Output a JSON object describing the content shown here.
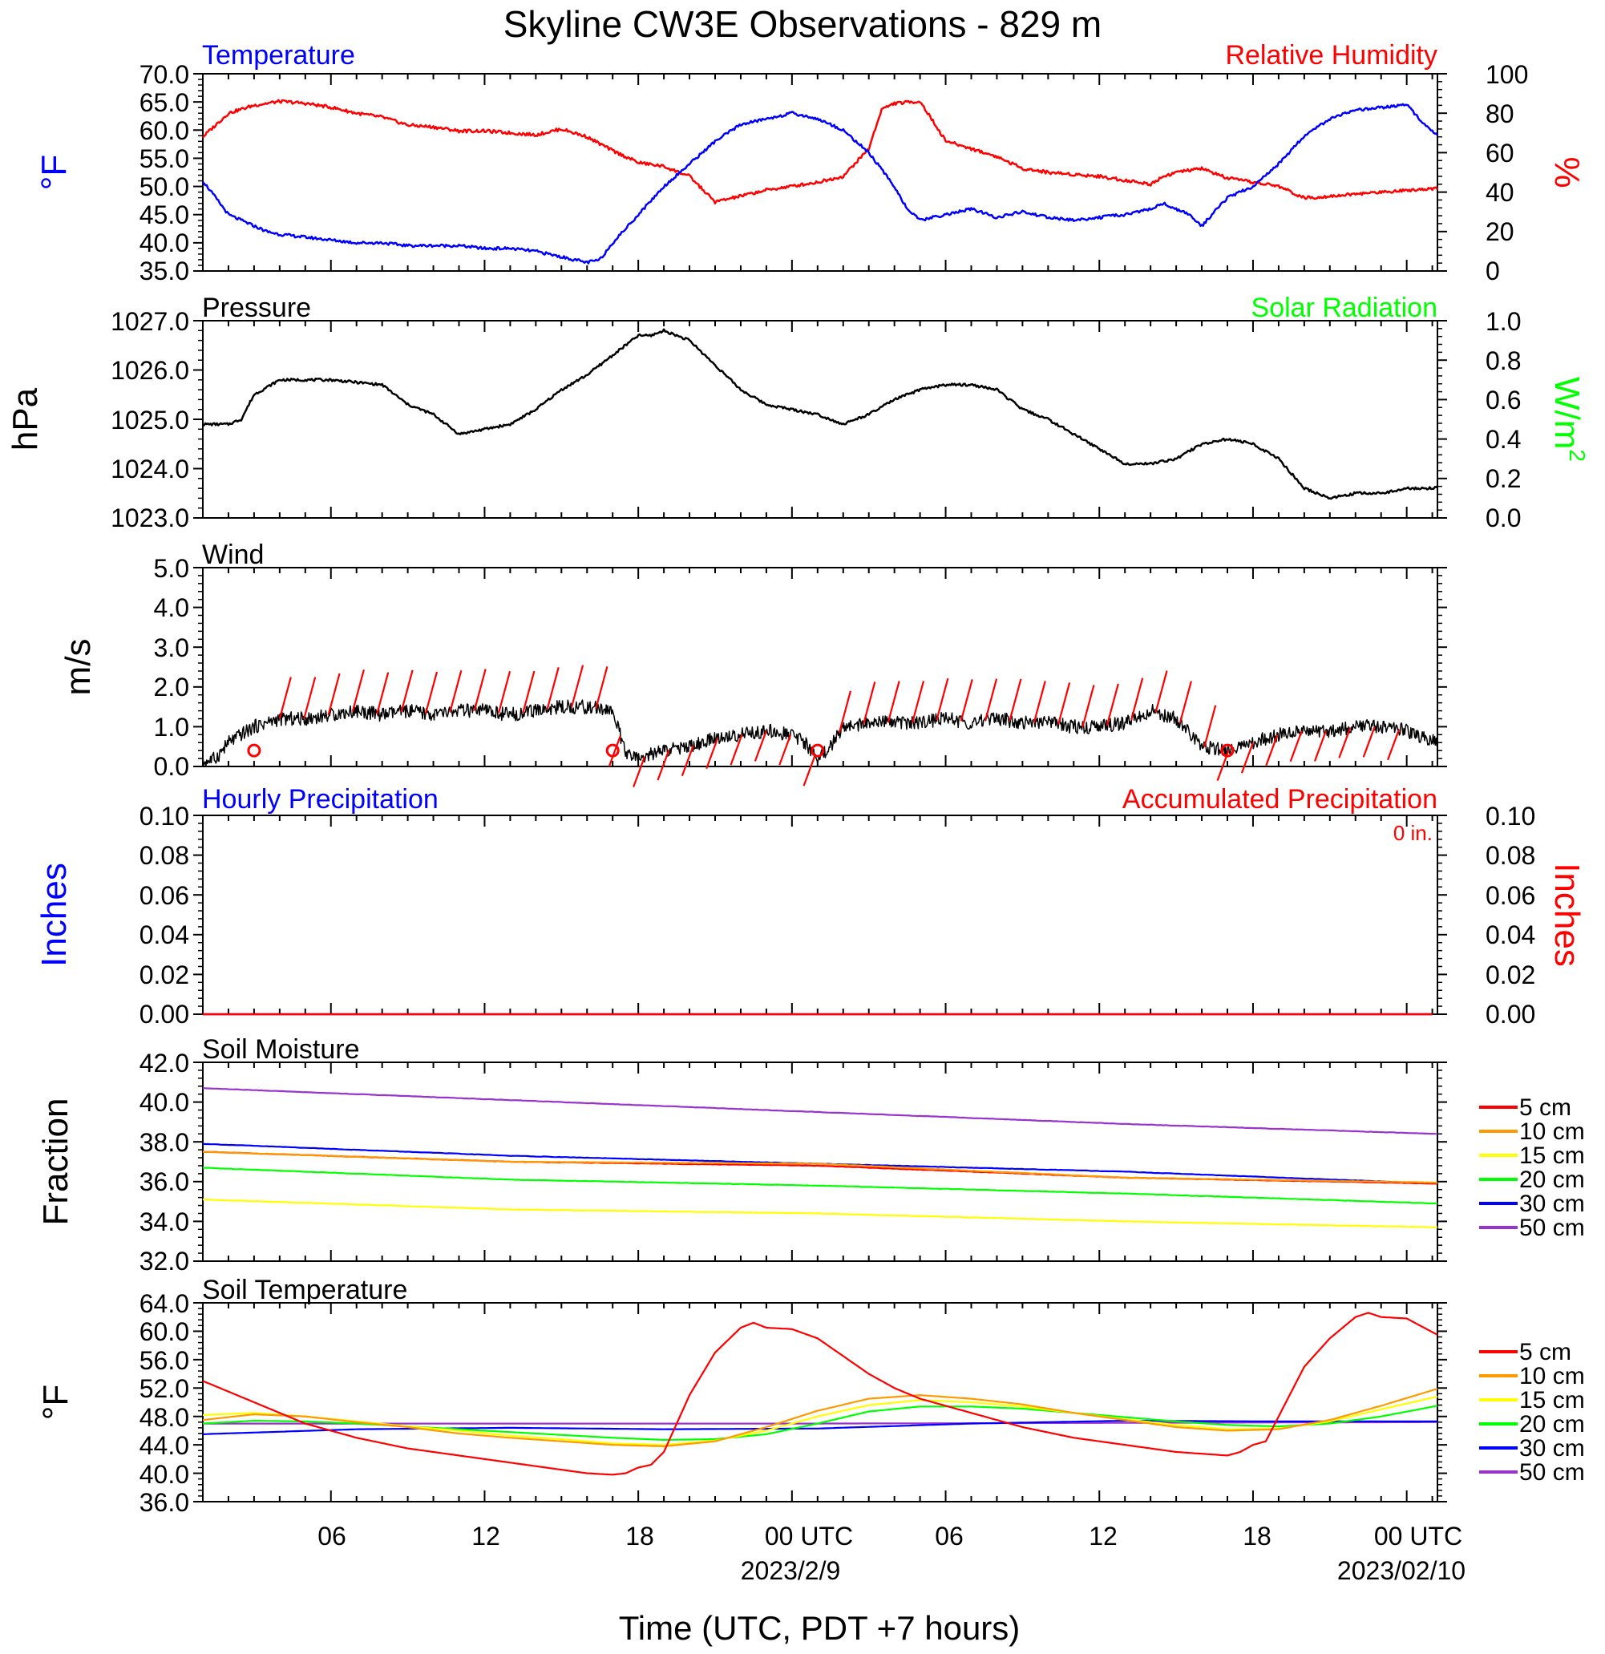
{
  "page": {
    "title": "Skyline CW3E Observations - 829 m",
    "xlabel": "Time (UTC, PDT +7 hours)"
  },
  "time_axis": {
    "tick_labels": [
      "06",
      "12",
      "18",
      "00 UTC",
      "06",
      "12",
      "18",
      "00 UTC"
    ],
    "date_labels": [
      "2023/2/9",
      "2023/02/10"
    ]
  },
  "colors": {
    "temperature": "#0000ff",
    "relative_humidity": "#ff0000",
    "solar_radiation": "#00ff00",
    "black": "#000000",
    "accum_precip": "#ff0000",
    "hourly_precip": "#0000ff",
    "depth_5cm": "#ff0000",
    "depth_10cm": "#ff9900",
    "depth_15cm": "#ffff00",
    "depth_20cm": "#00ff00",
    "depth_30cm": "#0000ff",
    "depth_50cm": "#9933cc"
  },
  "panels": {
    "temp_rh": {
      "left_title": "Temperature",
      "right_title": "Relative Humidity",
      "left_unit": "°F",
      "right_unit": "%",
      "left_ticks": [
        "70.0",
        "65.0",
        "60.0",
        "55.0",
        "50.0",
        "45.0",
        "40.0",
        "35.0"
      ],
      "right_ticks": [
        "100",
        "80",
        "60",
        "40",
        "20",
        "0"
      ]
    },
    "pressure": {
      "left_title": "Pressure",
      "right_title": "Solar Radiation",
      "left_unit": "hPa",
      "right_unit": "W/m",
      "right_unit_sup": "2",
      "left_ticks": [
        "1027.0",
        "1026.0",
        "1025.0",
        "1024.0",
        "1023.0"
      ],
      "right_ticks": [
        "1.0",
        "0.8",
        "0.6",
        "0.4",
        "0.2",
        "0.0"
      ]
    },
    "wind": {
      "left_title": "Wind",
      "left_unit": "m/s",
      "left_ticks": [
        "5.0",
        "4.0",
        "3.0",
        "2.0",
        "1.0",
        "0.0"
      ]
    },
    "precip": {
      "left_title": "Hourly Precipitation",
      "right_title": "Accumulated Precipitation",
      "total_label": "0 in.",
      "left_unit": "Inches",
      "right_unit": "Inches",
      "left_ticks": [
        "0.10",
        "0.08",
        "0.06",
        "0.04",
        "0.02",
        "0.00"
      ],
      "right_ticks": [
        "0.10",
        "0.08",
        "0.06",
        "0.04",
        "0.02",
        "0.00"
      ]
    },
    "soil_moisture": {
      "left_title": "Soil Moisture",
      "left_unit": "Fraction",
      "left_ticks": [
        "42.0",
        "40.0",
        "38.0",
        "36.0",
        "34.0",
        "32.0"
      ],
      "legend": [
        "5 cm",
        "10 cm",
        "15 cm",
        "20 cm",
        "30 cm",
        "50 cm"
      ]
    },
    "soil_temp": {
      "left_title": "Soil Temperature",
      "left_unit": "°F",
      "left_ticks": [
        "64.0",
        "60.0",
        "56.0",
        "52.0",
        "48.0",
        "44.0",
        "40.0",
        "36.0"
      ],
      "legend": [
        "5 cm",
        "10 cm",
        "15 cm",
        "20 cm",
        "30 cm",
        "50 cm"
      ]
    }
  },
  "chart_data": [
    {
      "type": "line",
      "title": "Temperature",
      "ylabel": "°F",
      "ylim": [
        35,
        70
      ],
      "x_units": "hours from start of record (UTC); 06 UTC 2023-02-08 at x=5",
      "xlim": [
        0,
        48.2
      ],
      "series": [
        {
          "name": "Temperature",
          "x": [
            0,
            0.5,
            1,
            2,
            2.5,
            3,
            4,
            5,
            6,
            7,
            8,
            9,
            10,
            11,
            12,
            13,
            14,
            15,
            15.5,
            16,
            17,
            18,
            19,
            20,
            21,
            22,
            23,
            24,
            25,
            26,
            27,
            27.5,
            28,
            29,
            30,
            31,
            32,
            33,
            34,
            35,
            36,
            37,
            37.5,
            38,
            38.5,
            39,
            40,
            41,
            42,
            43,
            44,
            45,
            46,
            47,
            47.5,
            48.2
          ],
          "values": [
            51,
            48,
            45,
            43,
            42,
            41.5,
            41,
            40.5,
            40,
            40,
            39.5,
            39.5,
            39.5,
            39,
            39,
            38.5,
            37.5,
            36.5,
            37,
            40,
            45,
            50,
            54,
            58,
            61,
            62,
            63,
            62,
            60,
            56,
            50,
            46,
            44,
            45,
            46,
            44.5,
            45.5,
            44.5,
            44,
            44.5,
            45,
            46,
            47,
            46,
            45,
            43,
            48,
            50,
            54,
            59,
            62,
            63.5,
            64,
            64.5,
            62,
            59
          ]
        },
        {
          "name": "Relative Humidity",
          "axis": "right",
          "ylim": [
            0,
            100
          ],
          "x": [
            0,
            0.5,
            1,
            2,
            3,
            4,
            5,
            6,
            7,
            8,
            9,
            10,
            11,
            12,
            13,
            14,
            15,
            16,
            17,
            18,
            19,
            20,
            21,
            22,
            23,
            24,
            25,
            26,
            26.5,
            27,
            28,
            29,
            30,
            31,
            32,
            33,
            34,
            35,
            36,
            37,
            37.5,
            38,
            39,
            40,
            41,
            42,
            43,
            44,
            45,
            46,
            47,
            48.2
          ],
          "values": [
            68,
            74,
            80,
            84,
            86,
            85,
            83,
            80,
            78,
            74,
            73,
            71,
            71,
            70,
            69,
            72,
            68,
            61,
            55,
            53,
            48,
            35,
            38,
            41,
            43,
            45,
            48,
            62,
            82,
            85,
            86,
            66,
            62,
            58,
            52,
            50,
            49,
            48,
            46,
            44,
            48,
            50,
            52,
            47,
            45,
            43,
            37,
            38,
            39,
            40,
            41,
            42
          ]
        }
      ]
    },
    {
      "type": "line",
      "title": "Pressure",
      "ylabel": "hPa",
      "ylim": [
        1023.0,
        1027.0
      ],
      "xlim": [
        0,
        48.2
      ],
      "series": [
        {
          "name": "Pressure",
          "x": [
            0,
            1,
            1.5,
            2,
            3,
            4,
            5,
            6,
            7,
            8,
            9,
            10,
            11,
            12,
            13,
            14,
            15,
            16,
            17,
            17.5,
            18,
            19,
            20,
            21,
            22,
            23,
            24,
            25,
            26,
            27,
            28,
            29,
            30,
            31,
            32,
            33,
            34,
            35,
            36,
            37,
            38,
            39,
            40,
            41,
            42,
            43,
            44,
            45,
            46,
            47,
            48,
            48.2
          ],
          "values": [
            1024.9,
            1024.9,
            1025.0,
            1025.5,
            1025.8,
            1025.8,
            1025.8,
            1025.75,
            1025.7,
            1025.3,
            1025.1,
            1024.7,
            1024.8,
            1024.9,
            1025.2,
            1025.6,
            1025.9,
            1026.3,
            1026.7,
            1026.7,
            1026.8,
            1026.6,
            1026.1,
            1025.6,
            1025.3,
            1025.2,
            1025.1,
            1024.9,
            1025.1,
            1025.4,
            1025.6,
            1025.7,
            1025.7,
            1025.6,
            1025.2,
            1025.0,
            1024.7,
            1024.4,
            1024.1,
            1024.1,
            1024.2,
            1024.5,
            1024.6,
            1024.5,
            1024.2,
            1023.6,
            1023.4,
            1023.5,
            1023.5,
            1023.6,
            1023.6,
            1023.65
          ]
        }
      ]
    },
    {
      "type": "line",
      "title": "Wind",
      "ylabel": "m/s",
      "ylim": [
        0,
        5
      ],
      "xlim": [
        0,
        48.2
      ],
      "series": [
        {
          "name": "Wind",
          "x": [
            0,
            0.5,
            1,
            1.5,
            2,
            2.5,
            3,
            4,
            5,
            6,
            7,
            8,
            9,
            10,
            11,
            12,
            13,
            14,
            15,
            16,
            16.2,
            16.5,
            17,
            18,
            19,
            20,
            21,
            22,
            23,
            23.5,
            24,
            24.5,
            25,
            26,
            27,
            28,
            29,
            30,
            31,
            32,
            33,
            34,
            35,
            36,
            37,
            38,
            39,
            40,
            41,
            42,
            43,
            44,
            45,
            46,
            47,
            48.2
          ],
          "values": [
            0.1,
            0.2,
            0.6,
            0.8,
            1.0,
            1.1,
            1.2,
            1.2,
            1.3,
            1.4,
            1.3,
            1.4,
            1.3,
            1.4,
            1.4,
            1.3,
            1.4,
            1.5,
            1.5,
            1.4,
            1.0,
            0.3,
            0.2,
            0.4,
            0.5,
            0.7,
            0.8,
            0.9,
            0.8,
            0.6,
            0.2,
            0.5,
            1.0,
            1.1,
            1.1,
            1.1,
            1.2,
            1.1,
            1.2,
            1.1,
            1.1,
            1.0,
            1.0,
            1.1,
            1.4,
            1.2,
            0.5,
            0.4,
            0.6,
            0.8,
            0.9,
            0.9,
            1.0,
            1.0,
            0.9,
            0.6
          ]
        }
      ],
      "calm_markers_x": [
        2,
        16,
        24,
        40
      ]
    },
    {
      "type": "line",
      "title": "Hourly Precipitation",
      "ylabel": "Inches",
      "ylim": [
        0,
        0.1
      ],
      "xlim": [
        0,
        48.2
      ],
      "series": [
        {
          "name": "Hourly Precipitation",
          "x": [
            0,
            48.2
          ],
          "values": [
            0,
            0
          ]
        },
        {
          "name": "Accumulated Precipitation",
          "axis": "right",
          "x": [
            0,
            48.2
          ],
          "values": [
            0,
            0
          ]
        }
      ]
    },
    {
      "type": "line",
      "title": "Soil Moisture",
      "ylabel": "Fraction",
      "ylim": [
        32,
        42
      ],
      "xlim": [
        0,
        48.2
      ],
      "series": [
        {
          "name": "5 cm",
          "x": [
            0,
            12,
            24,
            36,
            48.2
          ],
          "values": [
            37.5,
            37.0,
            36.8,
            36.2,
            35.9
          ]
        },
        {
          "name": "10 cm",
          "x": [
            0,
            12,
            24,
            36,
            48.2
          ],
          "values": [
            37.5,
            37.0,
            36.9,
            36.2,
            35.95
          ]
        },
        {
          "name": "15 cm",
          "x": [
            0,
            12,
            24,
            36,
            48.2
          ],
          "values": [
            35.1,
            34.6,
            34.4,
            34.0,
            33.7
          ]
        },
        {
          "name": "20 cm",
          "x": [
            0,
            12,
            24,
            36,
            48.2
          ],
          "values": [
            36.7,
            36.1,
            35.8,
            35.4,
            34.9
          ]
        },
        {
          "name": "30 cm",
          "x": [
            0,
            12,
            24,
            36,
            48.2
          ],
          "values": [
            37.9,
            37.3,
            36.9,
            36.5,
            35.9
          ]
        },
        {
          "name": "50 cm",
          "x": [
            0,
            12,
            24,
            36,
            48.2
          ],
          "values": [
            40.7,
            40.1,
            39.5,
            38.9,
            38.4
          ]
        }
      ]
    },
    {
      "type": "line",
      "title": "Soil Temperature",
      "ylabel": "°F",
      "ylim": [
        36,
        64
      ],
      "xlim": [
        0,
        48.2
      ],
      "series": [
        {
          "name": "5 cm",
          "x": [
            0,
            2,
            4,
            6,
            8,
            10,
            12,
            14,
            15,
            16,
            16.5,
            17,
            17.5,
            18,
            19,
            20,
            21,
            21.5,
            22,
            23,
            24,
            25,
            26,
            27,
            28,
            30,
            32,
            34,
            36,
            38,
            40,
            40.5,
            41,
            41.5,
            42,
            43,
            44,
            45,
            45.5,
            46,
            47,
            48.2
          ],
          "values": [
            53,
            50,
            47,
            45,
            43.5,
            42.5,
            41.5,
            40.5,
            40,
            39.8,
            40.0,
            40.8,
            41.2,
            43,
            51,
            57,
            60.5,
            61.2,
            60.5,
            60.3,
            59,
            56.5,
            54,
            52,
            50.5,
            48.5,
            46.5,
            45,
            44,
            43,
            42.5,
            43,
            44,
            44.5,
            48,
            55,
            59,
            62,
            62.6,
            62,
            61.8,
            59.5
          ]
        },
        {
          "name": "10 cm",
          "x": [
            0,
            2,
            4,
            6,
            8,
            10,
            12,
            14,
            16,
            18,
            20,
            22,
            24,
            26,
            28,
            30,
            32,
            34,
            36,
            38,
            40,
            42,
            44,
            46,
            48.2
          ],
          "values": [
            47.5,
            48.3,
            48.0,
            47.2,
            46.5,
            45.6,
            45.0,
            44.5,
            44.0,
            43.8,
            44.5,
            46.5,
            48.8,
            50.5,
            51.0,
            50.5,
            49.7,
            48.5,
            47.5,
            46.5,
            46.0,
            46.2,
            47.5,
            49.5,
            51.9
          ]
        },
        {
          "name": "15 cm",
          "x": [
            0,
            2,
            4,
            6,
            8,
            10,
            12,
            14,
            16,
            18,
            20,
            22,
            24,
            26,
            28,
            30,
            32,
            34,
            36,
            38,
            40,
            42,
            44,
            46,
            48.2
          ],
          "values": [
            48.2,
            48.5,
            48.0,
            47.3,
            46.6,
            46.0,
            45.3,
            44.8,
            44.2,
            44.0,
            44.6,
            46.0,
            48.0,
            49.6,
            50.3,
            50.0,
            49.4,
            48.5,
            47.6,
            46.8,
            46.2,
            46.3,
            47.3,
            49.0,
            50.8
          ]
        },
        {
          "name": "20 cm",
          "x": [
            0,
            2,
            4,
            6,
            8,
            10,
            12,
            14,
            16,
            18,
            20,
            22,
            24,
            26,
            28,
            30,
            32,
            34,
            36,
            38,
            40,
            42,
            44,
            46,
            48.2
          ],
          "values": [
            47.0,
            47.4,
            47.3,
            47.0,
            46.6,
            46.2,
            45.8,
            45.4,
            45.0,
            44.7,
            44.8,
            45.5,
            47.0,
            48.7,
            49.4,
            49.4,
            49.1,
            48.5,
            47.9,
            47.3,
            46.8,
            46.6,
            47.0,
            48.0,
            49.5
          ]
        },
        {
          "name": "30 cm",
          "x": [
            0,
            6,
            12,
            18,
            24,
            30,
            36,
            42,
            48.2
          ],
          "values": [
            45.5,
            46.2,
            46.4,
            46.2,
            46.3,
            47.0,
            47.4,
            47.3,
            47.3
          ]
        },
        {
          "name": "50 cm",
          "x": [
            0,
            12,
            24,
            36,
            48.2
          ],
          "values": [
            47.0,
            47.0,
            47.0,
            47.1,
            47.2
          ]
        }
      ]
    }
  ]
}
